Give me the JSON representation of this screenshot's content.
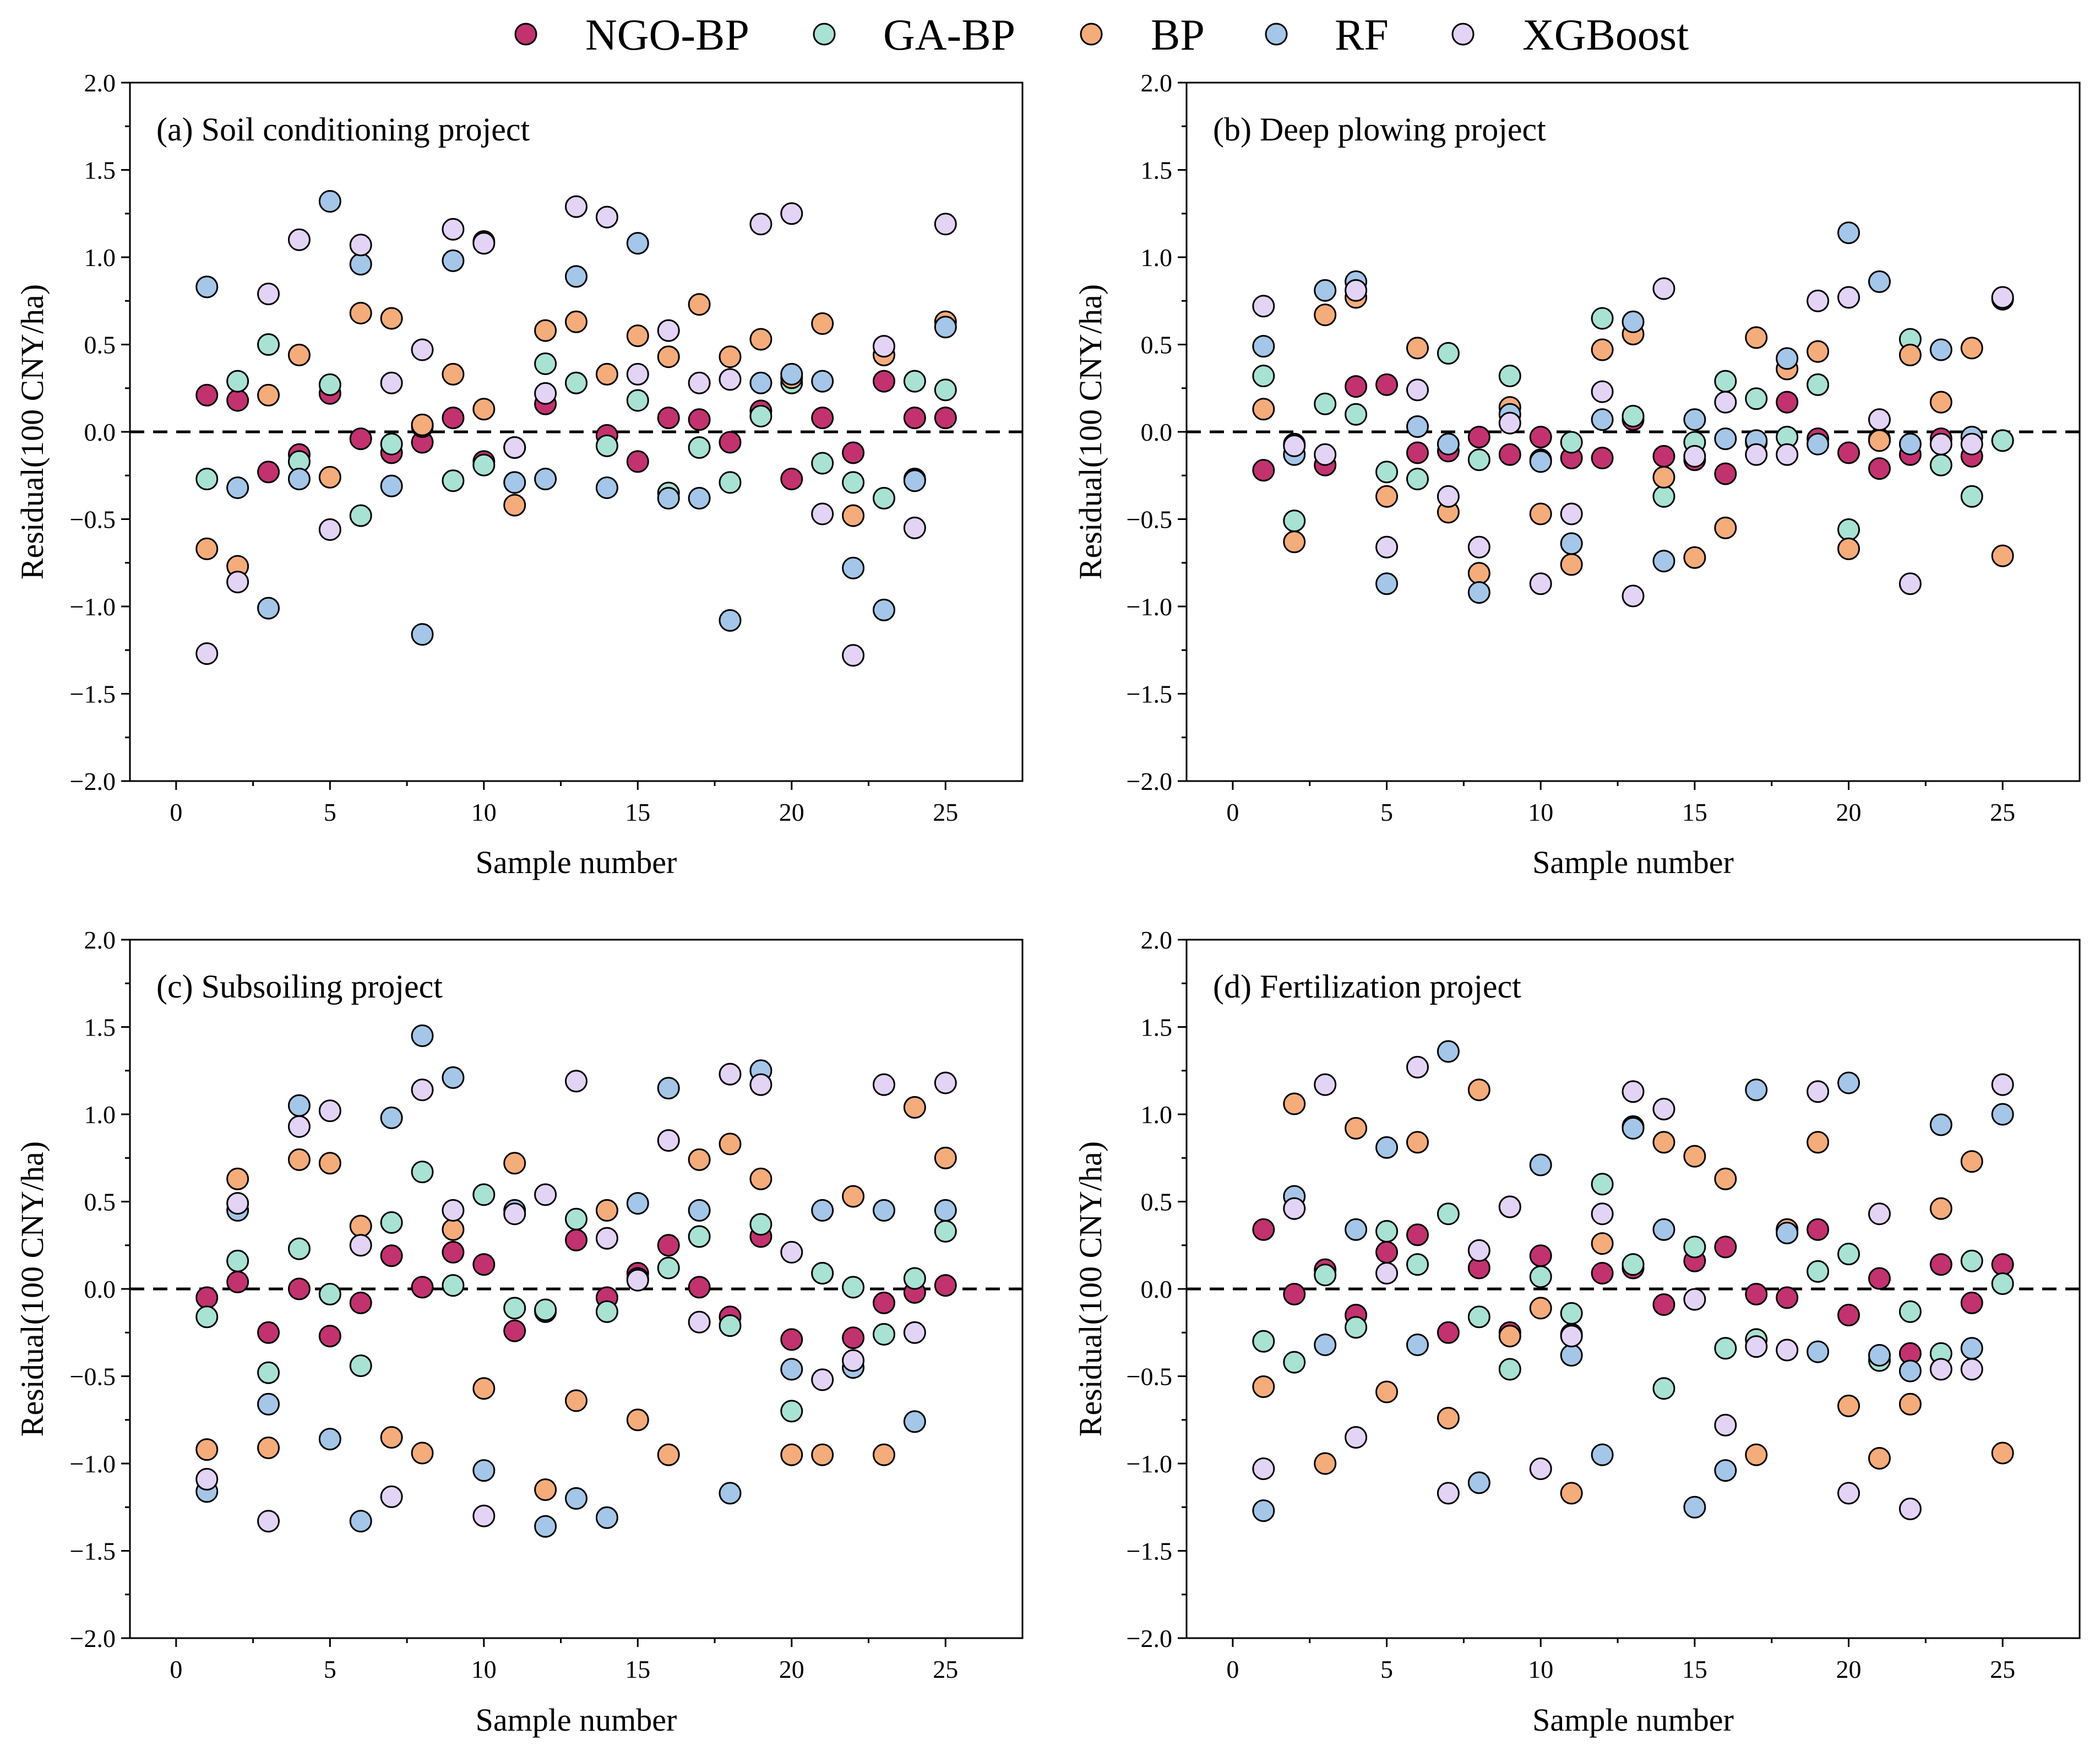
{
  "legend": [
    {
      "label": "NGO-BP",
      "color": "#c2326f"
    },
    {
      "label": "GA-BP",
      "color": "#a8e2d2"
    },
    {
      "label": "BP",
      "color": "#f5ac7b"
    },
    {
      "label": "RF",
      "color": "#a4c6e8"
    },
    {
      "label": "XGBoost",
      "color": "#e3d3f5"
    }
  ],
  "chart_data": [
    {
      "type": "scatter",
      "title": "(a) Soil conditioning project",
      "xlabel": "Sample number",
      "ylabel": "Residual(100 CNY/ha)",
      "xlim": [
        -1.5,
        27.5
      ],
      "ylim": [
        -2.0,
        2.0
      ],
      "xticks": [
        0,
        5,
        10,
        15,
        20,
        25
      ],
      "yticks": [
        2.0,
        1.5,
        1.0,
        0.5,
        0.0,
        -0.5,
        -1.0,
        -1.5,
        -2.0
      ],
      "ytick_labels": [
        "2.0",
        "1.5",
        "1.0",
        "0.5",
        "0.0",
        "−0.5",
        "−1.0",
        "−1.5",
        "−2.0"
      ],
      "reference_line": 0,
      "x": [
        1,
        2,
        3,
        4,
        5,
        6,
        7,
        8,
        9,
        10,
        11,
        12,
        13,
        14,
        15,
        16,
        17,
        18,
        19,
        20,
        21,
        22,
        23,
        24,
        25
      ],
      "series": [
        {
          "name": "NGO-BP",
          "values": [
            0.21,
            0.18,
            -0.23,
            -0.13,
            0.22,
            -0.04,
            -0.12,
            -0.06,
            0.08,
            -0.17,
            -0.09,
            0.16,
            0.28,
            -0.02,
            -0.17,
            0.08,
            0.07,
            -0.06,
            0.12,
            -0.27,
            0.08,
            -0.12,
            0.29,
            0.08,
            0.08
          ]
        },
        {
          "name": "GA-BP",
          "values": [
            -0.27,
            0.29,
            0.5,
            -0.17,
            0.27,
            -0.48,
            -0.07,
            0.03,
            -0.28,
            -0.19,
            -0.09,
            0.39,
            0.28,
            -0.08,
            0.18,
            -0.35,
            -0.09,
            -0.29,
            0.09,
            0.28,
            -0.18,
            -0.29,
            -0.38,
            0.29,
            0.24
          ]
        },
        {
          "name": "BP",
          "values": [
            -0.67,
            -0.77,
            0.21,
            0.44,
            -0.26,
            0.68,
            0.65,
            0.04,
            0.33,
            0.13,
            -0.42,
            0.58,
            0.63,
            0.33,
            0.55,
            0.43,
            0.73,
            0.43,
            0.53,
            0.31,
            0.62,
            -0.48,
            0.44,
            -0.27,
            0.63
          ]
        },
        {
          "name": "RF",
          "values": [
            0.83,
            -0.32,
            -1.01,
            -0.27,
            1.32,
            0.96,
            -0.31,
            -1.16,
            0.98,
            1.09,
            -0.29,
            -0.27,
            0.89,
            -0.32,
            1.08,
            -0.38,
            -0.38,
            -1.08,
            0.28,
            0.33,
            0.29,
            -0.78,
            -1.02,
            -0.28,
            0.6
          ]
        },
        {
          "name": "XGBoost",
          "values": [
            -1.27,
            -0.86,
            0.79,
            1.1,
            -0.56,
            1.07,
            0.28,
            0.47,
            1.16,
            1.08,
            -0.09,
            0.22,
            1.29,
            1.23,
            0.33,
            0.58,
            0.28,
            0.3,
            1.19,
            1.25,
            -0.47,
            -1.28,
            0.49,
            -0.55,
            1.19
          ]
        }
      ]
    },
    {
      "type": "scatter",
      "title": "(b) Deep plowing project",
      "xlabel": "Sample number",
      "ylabel": "Residual(100 CNY/ha)",
      "xlim": [
        -1.5,
        27.5
      ],
      "ylim": [
        -2.0,
        2.0
      ],
      "xticks": [
        0,
        5,
        10,
        15,
        20,
        25
      ],
      "yticks": [
        2.0,
        1.5,
        1.0,
        0.5,
        0.0,
        -0.5,
        -1.0,
        -1.5,
        -2.0
      ],
      "ytick_labels": [
        "2.0",
        "1.5",
        "1.0",
        "0.5",
        "0.0",
        "−0.5",
        "−1.0",
        "−1.5",
        "−2.0"
      ],
      "reference_line": 0,
      "x": [
        1,
        2,
        3,
        4,
        5,
        6,
        7,
        8,
        9,
        10,
        11,
        12,
        13,
        14,
        15,
        16,
        17,
        18,
        19,
        20,
        21,
        22,
        23,
        24,
        25
      ],
      "series": [
        {
          "name": "NGO-BP",
          "values": [
            -0.22,
            -0.07,
            -0.19,
            0.26,
            0.27,
            -0.12,
            -0.11,
            -0.03,
            -0.13,
            -0.03,
            -0.15,
            -0.15,
            0.07,
            -0.14,
            -0.16,
            -0.24,
            -0.06,
            0.17,
            -0.04,
            -0.12,
            -0.21,
            -0.13,
            -0.04,
            -0.14,
            -0.05
          ]
        },
        {
          "name": "GA-BP",
          "values": [
            0.32,
            -0.51,
            0.16,
            0.1,
            -0.23,
            -0.27,
            0.45,
            -0.16,
            0.32,
            -0.16,
            -0.06,
            0.65,
            0.09,
            -0.37,
            -0.06,
            0.29,
            0.19,
            -0.03,
            0.27,
            -0.56,
            -0.04,
            0.53,
            -0.19,
            -0.37,
            -0.05
          ]
        },
        {
          "name": "BP",
          "values": [
            0.13,
            -0.63,
            0.67,
            0.77,
            -0.37,
            0.48,
            -0.46,
            -0.81,
            0.14,
            -0.47,
            -0.76,
            0.47,
            0.56,
            -0.26,
            -0.72,
            -0.55,
            0.54,
            0.36,
            0.46,
            -0.67,
            -0.05,
            0.44,
            0.17,
            0.48,
            -0.71
          ]
        },
        {
          "name": "RF",
          "values": [
            0.49,
            -0.13,
            0.81,
            0.86,
            -0.87,
            0.03,
            -0.07,
            -0.92,
            0.1,
            -0.17,
            -0.64,
            0.07,
            0.63,
            -0.74,
            0.07,
            -0.04,
            -0.05,
            0.42,
            -0.07,
            1.14,
            0.86,
            -0.07,
            0.47,
            -0.03,
            0.76
          ]
        },
        {
          "name": "XGBoost",
          "values": [
            0.72,
            -0.08,
            -0.13,
            0.81,
            -0.66,
            0.24,
            -0.37,
            -0.66,
            0.05,
            -0.87,
            -0.47,
            0.23,
            -0.94,
            0.82,
            -0.14,
            0.17,
            -0.13,
            -0.13,
            0.75,
            0.77,
            0.07,
            -0.87,
            -0.07,
            -0.07,
            0.77
          ]
        }
      ]
    },
    {
      "type": "scatter",
      "title": "(c) Subsoiling project",
      "xlabel": "Sample number",
      "ylabel": "Residual(100 CNY/ha)",
      "xlim": [
        -1.5,
        27.5
      ],
      "ylim": [
        -2.0,
        2.0
      ],
      "xticks": [
        0,
        5,
        10,
        15,
        20,
        25
      ],
      "yticks": [
        2.0,
        1.5,
        1.0,
        0.5,
        0.0,
        -0.5,
        -1.0,
        -1.5,
        -2.0
      ],
      "ytick_labels": [
        "2.0",
        "1.5",
        "1.0",
        "0.5",
        "0.0",
        "−0.5",
        "−1.0",
        "−1.5",
        "−2.0"
      ],
      "reference_line": 0,
      "x": [
        1,
        2,
        3,
        4,
        5,
        6,
        7,
        8,
        9,
        10,
        11,
        12,
        13,
        14,
        15,
        16,
        17,
        18,
        19,
        20,
        21,
        22,
        23,
        24,
        25
      ],
      "series": [
        {
          "name": "NGO-BP",
          "values": [
            -0.05,
            0.04,
            -0.25,
            0.0,
            -0.27,
            -0.08,
            0.19,
            0.01,
            0.21,
            0.14,
            -0.24,
            -0.13,
            0.28,
            -0.05,
            0.09,
            0.25,
            0.01,
            -0.16,
            0.3,
            -0.29,
            0.09,
            -0.28,
            -0.08,
            -0.02,
            0.02
          ]
        },
        {
          "name": "GA-BP",
          "values": [
            -0.16,
            0.16,
            -0.48,
            0.23,
            -0.03,
            -0.44,
            0.38,
            0.67,
            0.02,
            0.54,
            -0.11,
            -0.12,
            0.4,
            -0.13,
            0.06,
            0.12,
            0.3,
            -0.21,
            0.37,
            -0.7,
            0.09,
            0.01,
            -0.26,
            0.06,
            0.33
          ]
        },
        {
          "name": "BP",
          "values": [
            -0.92,
            0.63,
            -0.91,
            0.74,
            0.72,
            0.36,
            -0.85,
            -0.94,
            0.34,
            -0.57,
            0.72,
            -1.15,
            -0.64,
            0.45,
            -0.75,
            -0.95,
            0.74,
            0.83,
            0.63,
            -0.95,
            -0.95,
            0.53,
            -0.95,
            1.04,
            0.75
          ]
        },
        {
          "name": "RF",
          "values": [
            -1.16,
            0.45,
            -0.66,
            1.05,
            -0.86,
            -1.33,
            0.98,
            1.45,
            1.21,
            -1.04,
            0.45,
            -1.36,
            -1.2,
            -1.31,
            0.49,
            1.15,
            0.45,
            -1.17,
            1.25,
            -0.46,
            0.45,
            -0.45,
            0.45,
            -0.76,
            0.45
          ]
        },
        {
          "name": "XGBoost",
          "values": [
            -1.09,
            0.49,
            -1.33,
            0.93,
            1.02,
            0.25,
            -1.19,
            1.14,
            0.45,
            -1.3,
            0.43,
            0.54,
            1.19,
            0.29,
            0.05,
            0.85,
            -0.19,
            1.23,
            1.17,
            0.21,
            -0.52,
            -0.41,
            1.17,
            -0.25,
            1.18
          ]
        }
      ]
    },
    {
      "type": "scatter",
      "title": "(d) Fertilization project",
      "xlabel": "Sample number",
      "ylabel": "Residual(100 CNY/ha)",
      "xlim": [
        -1.5,
        27.5
      ],
      "ylim": [
        -2.0,
        2.0
      ],
      "xticks": [
        0,
        5,
        10,
        15,
        20,
        25
      ],
      "yticks": [
        2.0,
        1.5,
        1.0,
        0.5,
        0.0,
        -0.5,
        -1.0,
        -1.5,
        -2.0
      ],
      "ytick_labels": [
        "2.0",
        "1.5",
        "1.0",
        "0.5",
        "0.0",
        "−0.5",
        "−1.0",
        "−1.5",
        "−2.0"
      ],
      "reference_line": 0,
      "x": [
        1,
        2,
        3,
        4,
        5,
        6,
        7,
        8,
        9,
        10,
        11,
        12,
        13,
        14,
        15,
        16,
        17,
        18,
        19,
        20,
        21,
        22,
        23,
        24,
        25
      ],
      "series": [
        {
          "name": "NGO-BP",
          "values": [
            0.34,
            -0.03,
            0.11,
            -0.15,
            0.21,
            0.31,
            -0.25,
            0.12,
            -0.25,
            0.19,
            -0.26,
            0.09,
            0.12,
            -0.09,
            0.16,
            0.24,
            -0.03,
            -0.05,
            0.34,
            -0.15,
            0.06,
            -0.37,
            0.14,
            -0.08,
            0.14
          ]
        },
        {
          "name": "GA-BP",
          "values": [
            -0.3,
            -0.42,
            0.08,
            -0.22,
            0.33,
            0.14,
            0.43,
            -0.16,
            -0.46,
            0.07,
            -0.14,
            0.6,
            0.14,
            -0.57,
            0.24,
            -0.34,
            -0.29,
            0.34,
            0.1,
            0.2,
            -0.41,
            -0.13,
            -0.37,
            0.16,
            0.03
          ]
        },
        {
          "name": "BP",
          "values": [
            -0.56,
            1.06,
            -1.0,
            0.92,
            -0.59,
            0.84,
            -0.74,
            1.14,
            -0.27,
            -0.11,
            -1.17,
            0.26,
            0.93,
            0.84,
            0.76,
            0.63,
            -0.95,
            0.34,
            0.84,
            -0.67,
            -0.97,
            -0.66,
            0.46,
            0.73,
            -0.94
          ]
        },
        {
          "name": "RF",
          "values": [
            -1.27,
            0.53,
            -0.32,
            0.34,
            0.81,
            -0.32,
            1.36,
            -1.11,
            0.47,
            0.71,
            -0.38,
            -0.95,
            0.92,
            0.34,
            -1.25,
            -1.04,
            1.14,
            0.32,
            -0.36,
            1.18,
            -0.38,
            -0.47,
            0.94,
            -0.34,
            1.0
          ]
        },
        {
          "name": "XGBoost",
          "values": [
            -1.03,
            0.46,
            1.17,
            -0.85,
            0.09,
            1.27,
            -1.17,
            0.22,
            0.47,
            -1.03,
            -0.27,
            0.43,
            1.13,
            1.03,
            -0.06,
            -0.78,
            -0.33,
            -0.35,
            1.13,
            -1.17,
            0.43,
            -1.26,
            -0.46,
            -0.46,
            1.17
          ]
        }
      ]
    }
  ]
}
